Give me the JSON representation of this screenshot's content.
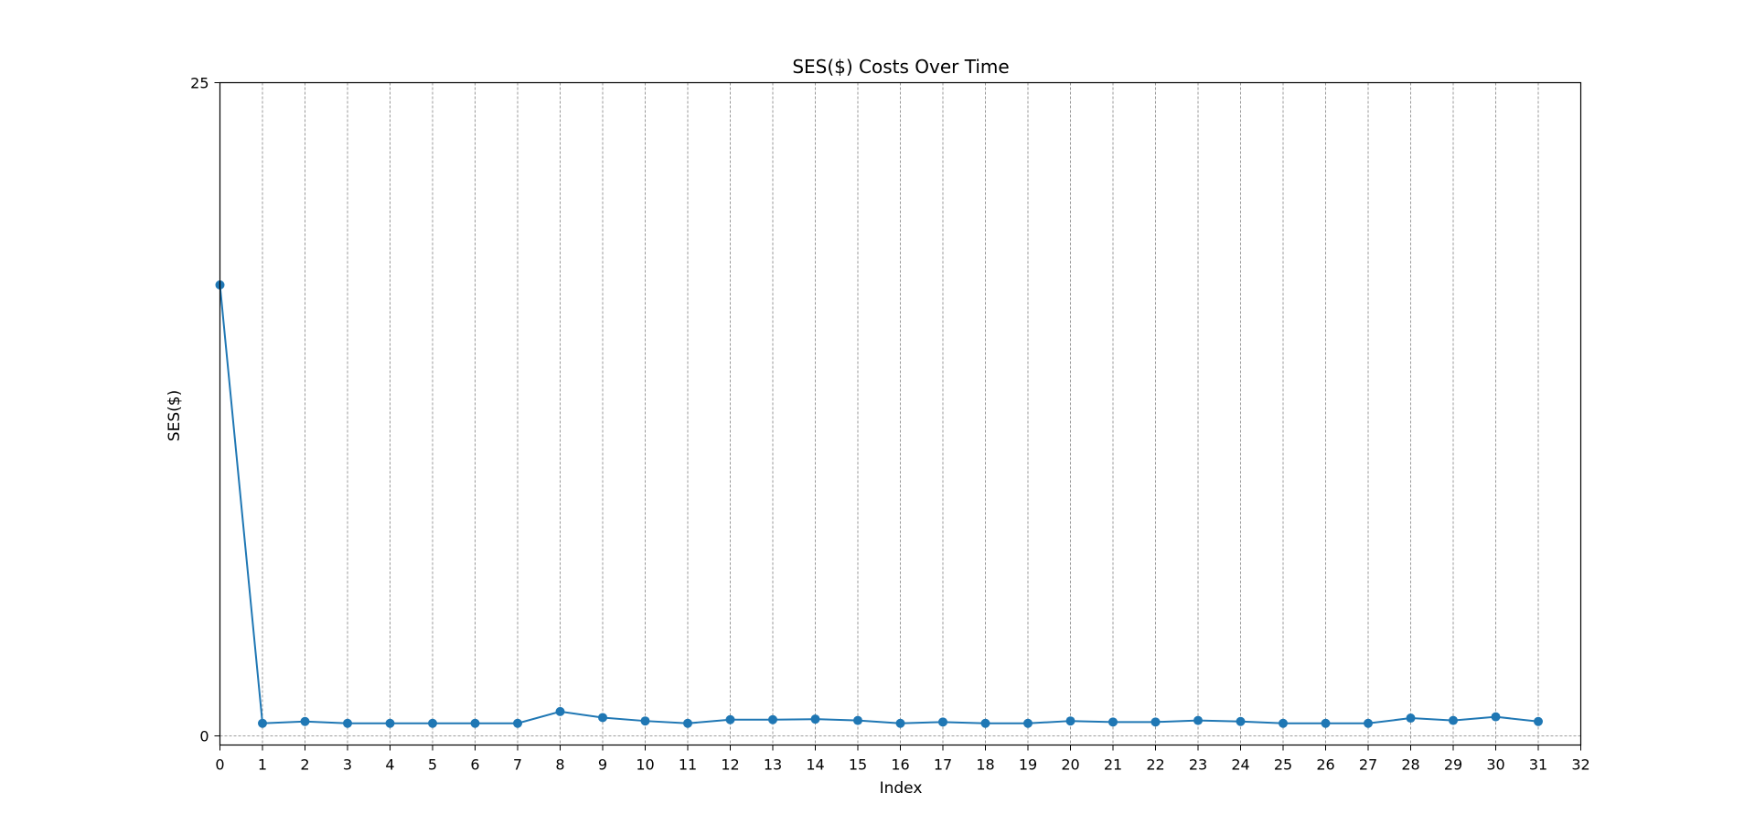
{
  "chart_data": {
    "type": "line",
    "title": "SES($) Costs Over Time",
    "xlabel": "Index",
    "ylabel": "SES($)",
    "x": [
      0,
      1,
      2,
      3,
      4,
      5,
      6,
      7,
      8,
      9,
      10,
      11,
      12,
      13,
      14,
      15,
      16,
      17,
      18,
      19,
      20,
      21,
      22,
      23,
      24,
      25,
      26,
      27,
      28,
      29,
      30,
      31
    ],
    "series": [
      {
        "values": [
          17.26,
          0.48,
          0.55,
          0.48,
          0.48,
          0.48,
          0.48,
          0.48,
          0.93,
          0.7,
          0.57,
          0.48,
          0.62,
          0.62,
          0.64,
          0.59,
          0.48,
          0.53,
          0.48,
          0.48,
          0.57,
          0.53,
          0.53,
          0.59,
          0.55,
          0.48,
          0.48,
          0.48,
          0.68,
          0.59,
          0.73,
          0.55
        ],
        "color": "#1f77b4"
      }
    ],
    "xlim": [
      0,
      32
    ],
    "ylim": [
      -0.35,
      25
    ],
    "xticks": [
      0,
      1,
      2,
      3,
      4,
      5,
      6,
      7,
      8,
      9,
      10,
      11,
      12,
      13,
      14,
      15,
      16,
      17,
      18,
      19,
      20,
      21,
      22,
      23,
      24,
      25,
      26,
      27,
      28,
      29,
      30,
      31,
      32
    ],
    "yticks": [
      0,
      25
    ],
    "grid": {
      "vertical": true,
      "horizontal_at_zero": true,
      "style": "dashed",
      "color": "#808080"
    },
    "legend": "none"
  }
}
